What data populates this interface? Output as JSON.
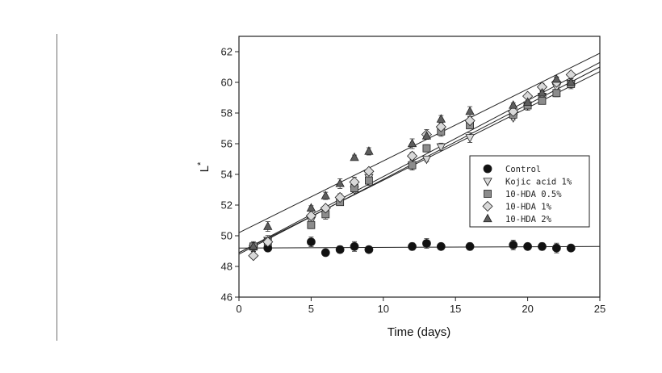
{
  "chart_data": {
    "type": "scatter",
    "title": "",
    "xlabel": "Time (days)",
    "ylabel": "L",
    "ylabel_superscript": "*",
    "xlim": [
      0,
      25
    ],
    "ylim": [
      46,
      63
    ],
    "xticks": [
      0,
      5,
      10,
      15,
      20,
      25
    ],
    "yticks": [
      46,
      48,
      50,
      52,
      54,
      56,
      58,
      60,
      62
    ],
    "x": [
      1,
      2,
      5,
      6,
      7,
      8,
      9,
      12,
      13,
      14,
      16,
      19,
      20,
      21,
      22,
      23
    ],
    "legend_position": "right",
    "grid": false,
    "error_bars": true,
    "trend_lines": true,
    "series": [
      {
        "name": "Control",
        "marker": "circle",
        "color": "#111111",
        "values": [
          49.3,
          49.2,
          49.6,
          48.9,
          49.1,
          49.3,
          49.1,
          49.3,
          49.5,
          49.3,
          49.3,
          49.4,
          49.3,
          49.3,
          49.2,
          49.2
        ],
        "fit": [
          49.2,
          49.3
        ]
      },
      {
        "name": "Kojic acid 1%",
        "marker": "triangle-down",
        "color": "#d9d9d9",
        "values": [
          49.2,
          49.7,
          51.0,
          51.6,
          52.3,
          53.0,
          53.8,
          54.6,
          55.0,
          55.8,
          56.4,
          57.7,
          58.5,
          59.1,
          59.7,
          59.9
        ],
        "fit": [
          48.9,
          60.7
        ]
      },
      {
        "name": "10-HDA 0.5%",
        "marker": "square",
        "color": "#8c8c8c",
        "values": [
          49.3,
          49.6,
          50.7,
          51.4,
          52.2,
          53.1,
          53.6,
          54.6,
          55.7,
          56.8,
          57.2,
          57.9,
          58.5,
          58.8,
          59.3,
          59.9
        ],
        "fit": [
          48.8,
          61.0
        ]
      },
      {
        "name": "10-HDA 1%",
        "marker": "diamond",
        "color": "#d9d9d9",
        "values": [
          48.7,
          49.6,
          51.3,
          51.8,
          52.5,
          53.5,
          54.2,
          55.2,
          56.6,
          57.1,
          57.5,
          58.1,
          59.1,
          59.7,
          60.0,
          60.5
        ],
        "fit": [
          48.9,
          61.3
        ]
      },
      {
        "name": "10-HDA 2%",
        "marker": "triangle-up",
        "color": "#5e5e5e",
        "values": [
          49.3,
          50.6,
          51.8,
          52.6,
          53.4,
          55.1,
          55.5,
          56.0,
          56.5,
          57.6,
          58.1,
          58.5,
          58.7,
          59.3,
          60.2,
          60.0
        ],
        "fit": [
          50.2,
          61.9
        ]
      }
    ]
  }
}
